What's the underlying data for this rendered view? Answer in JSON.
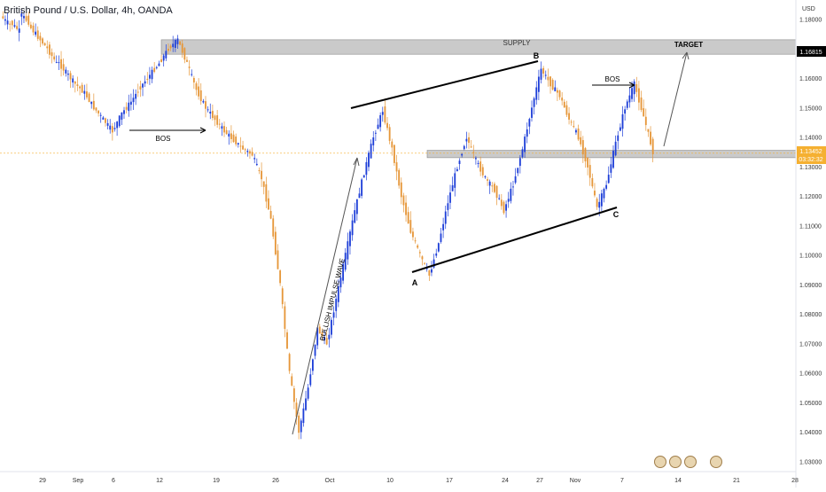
{
  "header": {
    "symbol_title": "British Pound / U.S. Dollar, 4h, OANDA",
    "currency": "USD"
  },
  "colors": {
    "bull": "#1e3fd8",
    "bear": "#e6973a",
    "zone": "#b8b8b8",
    "line": "#000000",
    "price_tag": "#f5b031",
    "target_tag": "#000000"
  },
  "chart_data": {
    "type": "candlestick",
    "title": "British Pound / U.S. Dollar, 4h, OANDA",
    "ylabel": "USD",
    "ylim": [
      1.0265,
      1.1865
    ],
    "y_ticks": [
      "1.18000",
      "1.17000",
      "1.16000",
      "1.15000",
      "1.14000",
      "1.13000",
      "1.12000",
      "1.11000",
      "1.10000",
      "1.09000",
      "1.08000",
      "1.07000",
      "1.06000",
      "1.05000",
      "1.04000",
      "1.03000"
    ],
    "x_ticks": [
      "29",
      "Sep",
      "6",
      "12",
      "19",
      "26",
      "Oct",
      "10",
      "17",
      "24",
      "27",
      "Nov",
      "7",
      "14",
      "21",
      "28"
    ],
    "price_path": [
      [
        1.181,
        1.178
      ],
      [
        1.179,
        1.176
      ],
      [
        1.182,
        1.179
      ],
      [
        1.178,
        1.174
      ],
      [
        1.174,
        1.17
      ],
      [
        1.17,
        1.165
      ],
      [
        1.166,
        1.162
      ],
      [
        1.162,
        1.158
      ],
      [
        1.158,
        1.155
      ],
      [
        1.155,
        1.15
      ],
      [
        1.15,
        1.146
      ],
      [
        1.146,
        1.142
      ],
      [
        1.142,
        1.148
      ],
      [
        1.148,
        1.152
      ],
      [
        1.152,
        1.157
      ],
      [
        1.157,
        1.161
      ],
      [
        1.161,
        1.165
      ],
      [
        1.165,
        1.17
      ],
      [
        1.17,
        1.173
      ],
      [
        1.173,
        1.165
      ],
      [
        1.165,
        1.156
      ],
      [
        1.156,
        1.15
      ],
      [
        1.15,
        1.146
      ],
      [
        1.146,
        1.142
      ],
      [
        1.142,
        1.139
      ],
      [
        1.139,
        1.136
      ],
      [
        1.136,
        1.134
      ],
      [
        1.134,
        1.126
      ],
      [
        1.126,
        1.112
      ],
      [
        1.112,
        1.09
      ],
      [
        1.09,
        1.06
      ],
      [
        1.06,
        1.04
      ],
      [
        1.04,
        1.055
      ],
      [
        1.055,
        1.075
      ],
      [
        1.075,
        1.07
      ],
      [
        1.07,
        1.085
      ],
      [
        1.085,
        1.1
      ],
      [
        1.1,
        1.115
      ],
      [
        1.115,
        1.128
      ],
      [
        1.128,
        1.14
      ],
      [
        1.14,
        1.149
      ],
      [
        1.149,
        1.136
      ],
      [
        1.136,
        1.12
      ],
      [
        1.12,
        1.108
      ],
      [
        1.108,
        1.1
      ],
      [
        1.1,
        1.093
      ],
      [
        1.093,
        1.104
      ],
      [
        1.104,
        1.118
      ],
      [
        1.118,
        1.13
      ],
      [
        1.13,
        1.14
      ],
      [
        1.14,
        1.132
      ],
      [
        1.132,
        1.126
      ],
      [
        1.126,
        1.122
      ],
      [
        1.122,
        1.115
      ],
      [
        1.115,
        1.124
      ],
      [
        1.124,
        1.136
      ],
      [
        1.136,
        1.15
      ],
      [
        1.15,
        1.163
      ],
      [
        1.163,
        1.158
      ],
      [
        1.158,
        1.154
      ],
      [
        1.154,
        1.146
      ],
      [
        1.146,
        1.14
      ],
      [
        1.14,
        1.13
      ],
      [
        1.13,
        1.116
      ],
      [
        1.116,
        1.124
      ],
      [
        1.124,
        1.138
      ],
      [
        1.138,
        1.15
      ],
      [
        1.15,
        1.158
      ],
      [
        1.158,
        1.147
      ],
      [
        1.147,
        1.135
      ]
    ],
    "zones": [
      {
        "label": "SUPPLY",
        "top": 1.173,
        "bottom": 1.1681
      },
      {
        "label": "",
        "top": 1.1355,
        "bottom": 1.133
      }
    ],
    "annotations": [
      "SUPPLY",
      "TARGET",
      "BOS",
      "BOS",
      "BULLISH IMPULSE WAVE",
      "A",
      "B",
      "C"
    ],
    "current_price": "1.13452",
    "countdown": "03:32:32",
    "target_price": "1.16815"
  }
}
